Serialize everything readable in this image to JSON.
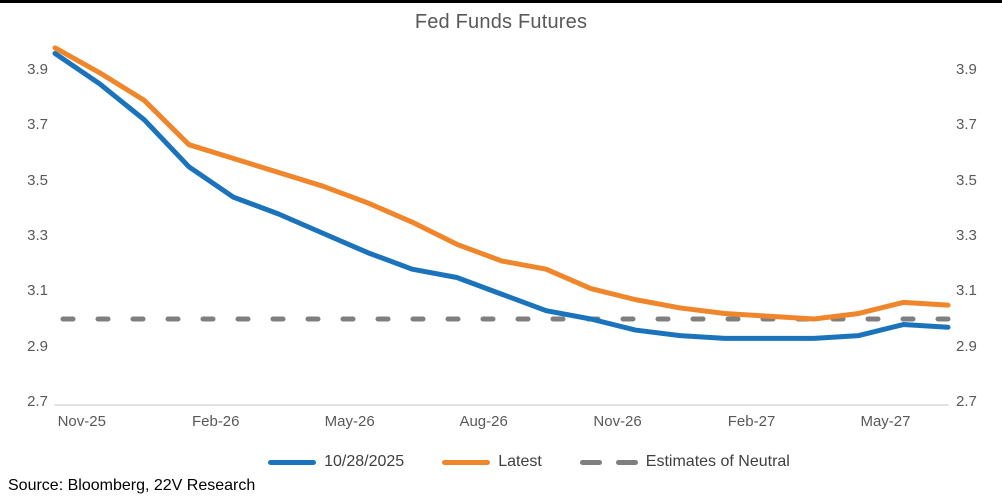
{
  "chart_data": {
    "type": "line",
    "title": "Fed Funds Futures",
    "source": "Source: Bloomberg, 22V Research",
    "grid": "off",
    "legend_position": "bottom",
    "ylim": [
      2.7,
      4.0
    ],
    "y_tick_labels": [
      "3.9",
      "3.7",
      "3.5",
      "3.3",
      "3.1",
      "2.9",
      "2.7"
    ],
    "x_tick_labels": [
      "Nov-25",
      "Feb-26",
      "May-26",
      "Aug-26",
      "Nov-26",
      "Feb-27",
      "May-27"
    ],
    "x": [
      "Nov-25",
      "Dec-25",
      "Jan-26",
      "Feb-26",
      "Mar-26",
      "Apr-26",
      "May-26",
      "Jun-26",
      "Jul-26",
      "Aug-26",
      "Sep-26",
      "Oct-26",
      "Nov-26",
      "Dec-26",
      "Jan-27",
      "Feb-27",
      "Mar-27",
      "Apr-27",
      "May-27",
      "Jun-27",
      "Jul-27"
    ],
    "series": [
      {
        "name": "10/28/2025",
        "style": "solid",
        "color": "#1B74BB",
        "values": [
          3.96,
          3.85,
          3.72,
          3.55,
          3.44,
          3.38,
          3.31,
          3.24,
          3.18,
          3.15,
          3.09,
          3.03,
          3.0,
          2.96,
          2.94,
          2.93,
          2.93,
          2.93,
          2.94,
          2.98,
          2.97
        ]
      },
      {
        "name": "Latest",
        "style": "solid",
        "color": "#F0862B",
        "values": [
          3.98,
          3.89,
          3.79,
          3.63,
          3.58,
          3.53,
          3.48,
          3.42,
          3.35,
          3.27,
          3.21,
          3.18,
          3.11,
          3.07,
          3.04,
          3.02,
          3.01,
          3.0,
          3.02,
          3.06,
          3.05
        ]
      },
      {
        "name": "Estimates of Neutral",
        "style": "dashed",
        "color": "#7F7F7F",
        "constant_value": 3.0
      }
    ],
    "axis_line_color": "#D9D9D9",
    "axis_text_color": "#595959"
  }
}
